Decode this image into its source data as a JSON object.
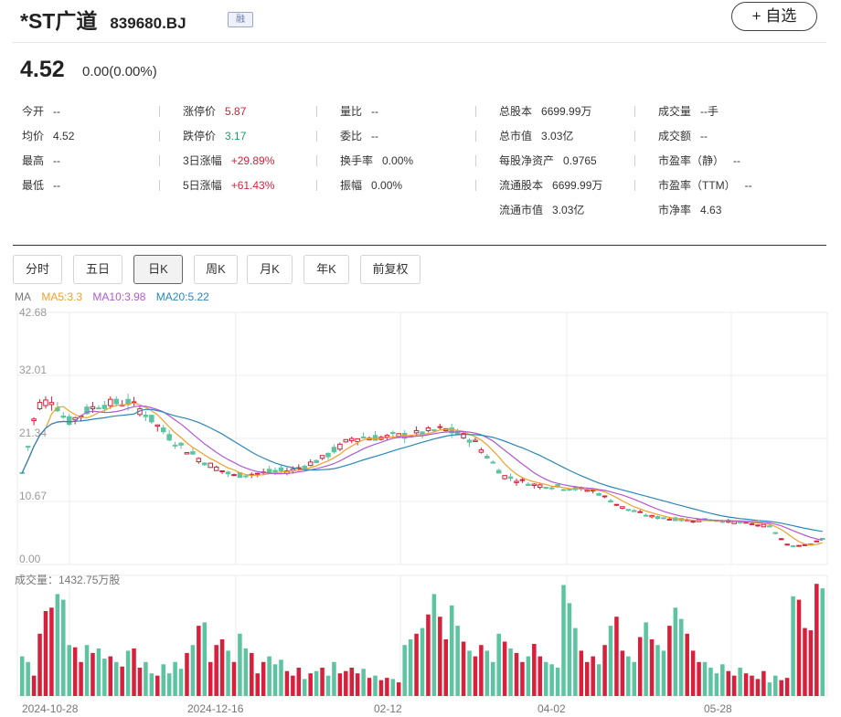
{
  "header": {
    "name": "*ST广道",
    "code": "839680.BJ",
    "badge": "融",
    "watch_label": "+ 自选"
  },
  "price": {
    "last": "4.52",
    "change": "0.00(0.00%)"
  },
  "quotes": [
    [
      {
        "k": "今开",
        "v": "--"
      },
      {
        "k": "均价",
        "v": "4.52"
      },
      {
        "k": "最高",
        "v": "--"
      },
      {
        "k": "最低",
        "v": "--"
      }
    ],
    [
      {
        "k": "涨停价",
        "v": "5.87",
        "c": "red"
      },
      {
        "k": "跌停价",
        "v": "3.17",
        "c": "green"
      },
      {
        "k": "3日涨幅",
        "v": "+29.89%",
        "c": "red"
      },
      {
        "k": "5日涨幅",
        "v": "+61.43%",
        "c": "red"
      }
    ],
    [
      {
        "k": "量比",
        "v": "--"
      },
      {
        "k": "委比",
        "v": "--"
      },
      {
        "k": "换手率",
        "v": "0.00%"
      },
      {
        "k": "振幅",
        "v": "0.00%"
      }
    ],
    [
      {
        "k": "总股本",
        "v": "6699.99万"
      },
      {
        "k": "总市值",
        "v": "3.03亿"
      },
      {
        "k": "每股净资产",
        "v": "0.9765"
      },
      {
        "k": "流通股本",
        "v": "6699.99万"
      },
      {
        "k": "流通市值",
        "v": "3.03亿"
      }
    ],
    [
      {
        "k": "成交量",
        "v": "--手"
      },
      {
        "k": "成交额",
        "v": "--"
      },
      {
        "k": "市盈率（静）",
        "v": "--"
      },
      {
        "k": "市盈率（TTM）",
        "v": "--"
      },
      {
        "k": "市净率",
        "v": "4.63"
      }
    ]
  ],
  "tabs": [
    "分时",
    "五日",
    "日K",
    "周K",
    "月K",
    "年K",
    "前复权"
  ],
  "active_tab": "日K",
  "ma": {
    "label": "MA",
    "ma5": "MA5:3.3",
    "ma10": "MA10:3.98",
    "ma20": "MA20:5.22"
  },
  "colors": {
    "up": "#d6203c",
    "down": "#5cc4a0",
    "ma5": "#f0a028",
    "ma10": "#b05ad0",
    "ma20": "#2a86b8",
    "grid": "#ececec"
  },
  "chart_data": {
    "type": "candlestick",
    "y_ticks": [
      "42.68",
      "32.01",
      "21.34",
      "10.67",
      "0.00"
    ],
    "ylim": [
      0,
      42.68
    ],
    "volume_label": "成交量：1432.75万股",
    "x_ticks": [
      "2024-10-28",
      "2024-12-16",
      "02-12",
      "04-02",
      "05-28"
    ],
    "price_anchors": [
      [
        0,
        15.5
      ],
      [
        5,
        27
      ],
      [
        10,
        28
      ],
      [
        15,
        24
      ],
      [
        25,
        27
      ],
      [
        35,
        27.5
      ],
      [
        40,
        26
      ],
      [
        50,
        21
      ],
      [
        60,
        17.5
      ],
      [
        70,
        15
      ],
      [
        80,
        15.5
      ],
      [
        90,
        16
      ],
      [
        100,
        18
      ],
      [
        110,
        21.5
      ],
      [
        120,
        21.5
      ],
      [
        130,
        22
      ],
      [
        140,
        23
      ],
      [
        150,
        21
      ],
      [
        160,
        15
      ],
      [
        170,
        13.5
      ],
      [
        180,
        13
      ],
      [
        190,
        12.5
      ],
      [
        200,
        9.5
      ],
      [
        210,
        8
      ],
      [
        220,
        7.5
      ],
      [
        230,
        7.5
      ],
      [
        240,
        7
      ],
      [
        248,
        6.5
      ],
      [
        255,
        3
      ],
      [
        262,
        3.5
      ],
      [
        266,
        4.52
      ]
    ],
    "volume_relative": [
      0.35,
      0.3,
      0.18,
      0.55,
      0.75,
      0.78,
      0.9,
      0.85,
      0.45,
      0.43,
      0.3,
      0.45,
      0.38,
      0.42,
      0.33,
      0.35,
      0.3,
      0.26,
      0.4,
      0.42,
      0.25,
      0.3,
      0.2,
      0.18,
      0.28,
      0.2,
      0.3,
      0.24,
      0.38,
      0.45,
      0.62,
      0.65,
      0.3,
      0.45,
      0.5,
      0.4,
      0.3,
      0.55,
      0.42,
      0.38,
      0.2,
      0.3,
      0.35,
      0.28,
      0.32,
      0.22,
      0.18,
      0.25,
      0.15,
      0.2,
      0.22,
      0.25,
      0.18,
      0.3,
      0.2,
      0.22,
      0.25,
      0.2,
      0.24,
      0.16,
      0.18,
      0.14,
      0.16,
      0.15,
      0.12,
      0.45,
      0.5,
      0.55,
      0.6,
      0.72,
      0.9,
      0.7,
      0.5,
      0.8,
      0.62,
      0.48,
      0.4,
      0.35,
      0.45,
      0.4,
      0.3,
      0.55,
      0.48,
      0.42,
      0.38,
      0.3,
      0.35,
      0.46,
      0.35,
      0.3,
      0.28,
      0.25,
      0.98,
      0.82,
      0.6,
      0.4,
      0.3,
      0.35,
      0.28,
      0.45,
      0.62,
      0.7,
      0.4,
      0.35,
      0.3,
      0.52,
      0.65,
      0.5,
      0.45,
      0.4,
      0.62,
      0.78,
      0.68,
      0.55,
      0.4,
      0.3,
      0.3,
      0.25,
      0.2,
      0.28,
      0.22,
      0.18,
      0.25,
      0.2,
      0.18,
      0.15,
      0.22,
      0.12,
      0.18,
      0.14,
      0.16,
      0.88,
      0.85,
      0.6,
      0.58,
      0.99,
      0.95
    ]
  }
}
